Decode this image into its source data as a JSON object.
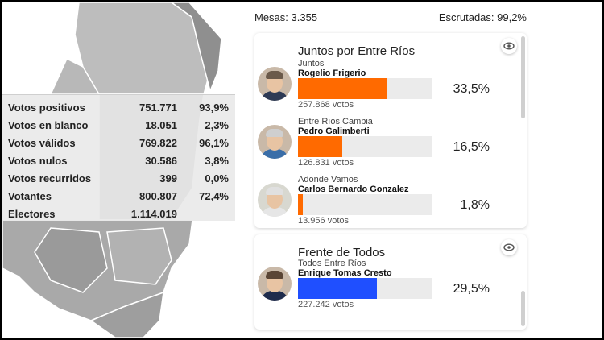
{
  "stats": {
    "rows": [
      {
        "label": "Votos positivos",
        "value": "751.771",
        "pct": "93,9%"
      },
      {
        "label": "Votos en blanco",
        "value": "18.051",
        "pct": "2,3%"
      },
      {
        "label": "Votos válidos",
        "value": "769.822",
        "pct": "96,1%"
      },
      {
        "label": "Votos nulos",
        "value": "30.586",
        "pct": "3,8%"
      },
      {
        "label": "Votos recurridos",
        "value": "399",
        "pct": "0,0%"
      },
      {
        "label": "Votantes",
        "value": "800.807",
        "pct": "72,4%"
      },
      {
        "label": "Electores",
        "value": "1.114.019",
        "pct": ""
      }
    ]
  },
  "header": {
    "mesas": "Mesas: 3.355",
    "escrutadas": "Escrutadas: 99,2%"
  },
  "cards": [
    {
      "title": "Juntos por Entre Ríos",
      "candidates": [
        {
          "party": "Juntos",
          "name": "Rogelio Frigerio",
          "votes": "257.868 votos",
          "pct": "33,5%",
          "share": 0.335,
          "color": "#ff6a00"
        },
        {
          "party": "Entre Ríos Cambia",
          "name": "Pedro Galimberti",
          "votes": "126.831 votos",
          "pct": "16,5%",
          "share": 0.165,
          "color": "#ff6a00"
        },
        {
          "party": "Adonde Vamos",
          "name": "Carlos Bernardo Gonzalez",
          "votes": "13.956 votos",
          "pct": "1,8%",
          "share": 0.018,
          "color": "#ff6a00"
        }
      ]
    },
    {
      "title": "Frente de Todos",
      "candidates": [
        {
          "party": "Todos Entre Ríos",
          "name": "Enrique Tomas Cresto",
          "votes": "227.242 votos",
          "pct": "29,5%",
          "share": 0.295,
          "color": "#1f4fff"
        }
      ]
    }
  ]
}
